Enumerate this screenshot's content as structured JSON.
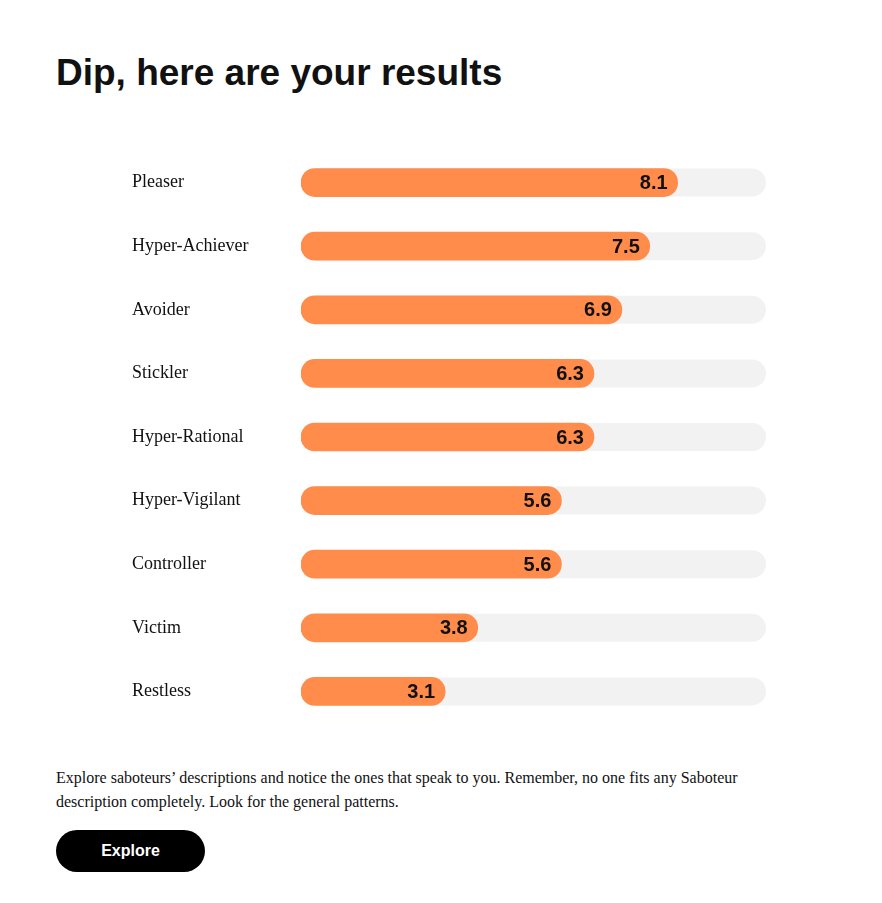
{
  "chart_data": {
    "type": "bar",
    "title": "Dip, here are your results",
    "orientation": "horizontal",
    "categories": [
      "Pleaser",
      "Hyper-Achiever",
      "Avoider",
      "Stickler",
      "Hyper-Rational",
      "Hyper-Vigilant",
      "Controller",
      "Victim",
      "Restless"
    ],
    "values": [
      8.1,
      7.5,
      6.9,
      6.3,
      6.3,
      5.6,
      5.6,
      3.8,
      3.1
    ],
    "color": "#ff8c4b",
    "xlim": [
      0,
      10
    ],
    "grid": false,
    "data_labels": true,
    "tick_labels": "y"
  },
  "footer": {
    "text": "Explore saboteurs’ descriptions and notice the ones that speak to you. Remember, no one fits any Saboteur description completely. Look for the general patterns.",
    "button": "Explore"
  }
}
